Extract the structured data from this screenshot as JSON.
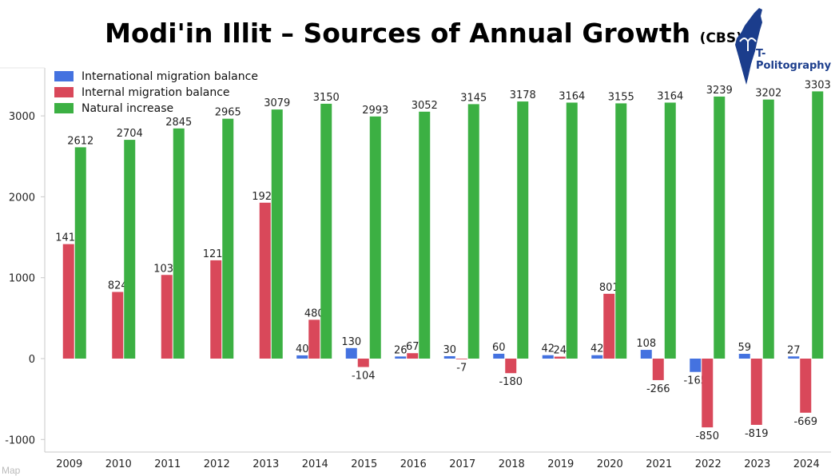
{
  "title": "Modi'in Illit – Sources of Annual Growth",
  "title_source": "(CBS)",
  "logo_text": "T-Politography",
  "corner_text": "Map",
  "chart_data": {
    "type": "bar",
    "title": "Modi'in Illit – Sources of Annual Growth (CBS)",
    "xlabel": "",
    "ylabel": "",
    "ylim": [
      -1100,
      3550
    ],
    "yticks": [
      -1000,
      0,
      1000,
      2000,
      3000
    ],
    "grid": false,
    "legend_position": "top-left",
    "categories": [
      "2009",
      "2010",
      "2011",
      "2012",
      "2013",
      "2014",
      "2015",
      "2016",
      "2017",
      "2018",
      "2019",
      "2020",
      "2021",
      "2022",
      "2023",
      "2024"
    ],
    "series": [
      {
        "name": "International migration balance",
        "color": "#4472e0",
        "values": [
          null,
          null,
          null,
          null,
          null,
          40,
          130,
          26,
          30,
          60,
          42,
          42,
          108,
          -165,
          59,
          27
        ]
      },
      {
        "name": "Internal migration balance",
        "color": "#d9485a",
        "values": [
          1415,
          824,
          1034,
          1215,
          1927,
          480,
          -104,
          67,
          -7,
          -180,
          24,
          801,
          -266,
          -850,
          -819,
          -669
        ]
      },
      {
        "name": "Natural increase",
        "color": "#3cb043",
        "values": [
          2612,
          2704,
          2845,
          2965,
          3079,
          3150,
          2993,
          3052,
          3145,
          3178,
          3164,
          3155,
          3164,
          3239,
          3202,
          3303
        ]
      }
    ]
  }
}
